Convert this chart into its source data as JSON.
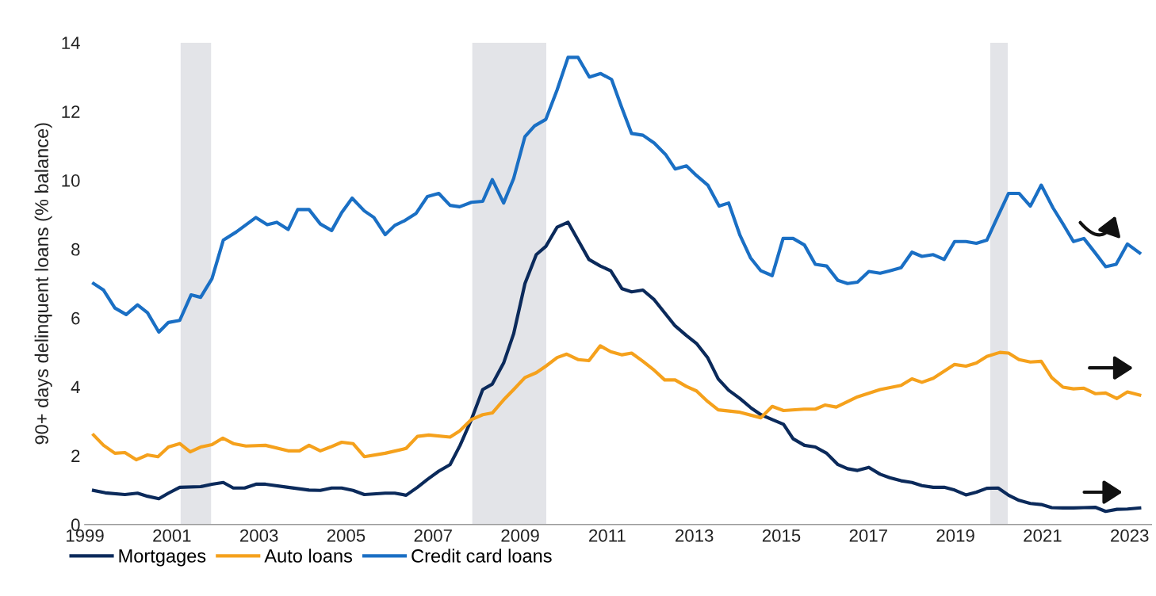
{
  "chart_data": {
    "type": "line",
    "ylabel": "90+ days delinquent loans (% balance)",
    "xlim": [
      1999,
      2023.5
    ],
    "ylim": [
      0,
      14
    ],
    "xticks": [
      1999,
      2001,
      2003,
      2005,
      2007,
      2009,
      2011,
      2013,
      2015,
      2017,
      2019,
      2021,
      2023
    ],
    "yticks": [
      0,
      2,
      4,
      6,
      8,
      10,
      12,
      14
    ],
    "grid": false,
    "legend": "bottom left",
    "marker": "none",
    "line_style": "solid",
    "bands": [
      {
        "axis": "x",
        "from": 2001.2,
        "to": 2001.9,
        "color": "#e3e4e8"
      },
      {
        "axis": "x",
        "from": 2007.9,
        "to": 2009.6,
        "color": "#e3e4e8"
      },
      {
        "axis": "x",
        "from": 2019.8,
        "to": 2020.2,
        "color": "#e3e4e8"
      }
    ],
    "series": [
      {
        "name": "Mortgages",
        "color": "#0b2a5b",
        "x": [
          1999.2,
          1999.47,
          1999.92,
          2000.21,
          2000.44,
          2000.7,
          2000.92,
          2001.18,
          2001.66,
          2001.92,
          2002.18,
          2002.41,
          2002.67,
          2002.93,
          2003.15,
          2003.67,
          2004.15,
          2004.41,
          2004.67,
          2004.9,
          2005.16,
          2005.42,
          2005.9,
          2006.12,
          2006.38,
          2006.64,
          2006.87,
          2007.13,
          2007.39,
          2007.62,
          2007.88,
          2008.14,
          2008.36,
          2008.62,
          2008.85,
          2009.11,
          2009.37,
          2009.59,
          2009.85,
          2010.1,
          2010.33,
          2010.58,
          2010.84,
          2011.08,
          2011.34,
          2011.56,
          2011.82,
          2012.08,
          2012.32,
          2012.56,
          2012.82,
          2013.05,
          2013.31,
          2013.55,
          2013.79,
          2014.05,
          2014.31,
          2014.53,
          2014.79,
          2015.05,
          2015.27,
          2015.53,
          2015.78,
          2016.04,
          2016.3,
          2016.52,
          2016.75,
          2017.01,
          2017.27,
          2017.49,
          2017.75,
          2018.0,
          2018.23,
          2018.49,
          2018.74,
          2018.98,
          2019.24,
          2019.48,
          2019.72,
          2019.98,
          2020.22,
          2020.46,
          2020.72,
          2020.97,
          2021.21,
          2021.47,
          2021.71,
          2021.95,
          2022.21,
          2022.45,
          2022.71,
          2022.95,
          2023.23
        ],
        "values": [
          0.99,
          0.92,
          0.87,
          0.91,
          0.82,
          0.75,
          0.91,
          1.08,
          1.1,
          1.17,
          1.22,
          1.06,
          1.06,
          1.17,
          1.17,
          1.08,
          1.0,
          0.99,
          1.06,
          1.06,
          0.99,
          0.87,
          0.91,
          0.91,
          0.85,
          1.08,
          1.31,
          1.55,
          1.74,
          2.3,
          3.05,
          3.92,
          4.08,
          4.69,
          5.54,
          7.0,
          7.84,
          8.08,
          8.64,
          8.78,
          8.26,
          7.7,
          7.51,
          7.37,
          6.85,
          6.76,
          6.81,
          6.53,
          6.15,
          5.77,
          5.49,
          5.26,
          4.84,
          4.23,
          3.9,
          3.66,
          3.38,
          3.19,
          3.05,
          2.91,
          2.49,
          2.3,
          2.25,
          2.07,
          1.74,
          1.62,
          1.57,
          1.66,
          1.46,
          1.36,
          1.27,
          1.22,
          1.13,
          1.08,
          1.08,
          1.0,
          0.86,
          0.94,
          1.05,
          1.06,
          0.85,
          0.7,
          0.61,
          0.58,
          0.49,
          0.48,
          0.48,
          0.49,
          0.5,
          0.38,
          0.44,
          0.45,
          0.48
        ]
      },
      {
        "name": "Auto loans",
        "color": "#f5a11c",
        "x": [
          1999.2,
          1999.43,
          1999.69,
          1999.92,
          2000.18,
          2000.44,
          2000.68,
          2000.92,
          2001.18,
          2001.42,
          2001.66,
          2001.92,
          2002.17,
          2002.41,
          2002.7,
          2003.15,
          2003.67,
          2003.93,
          2004.15,
          2004.41,
          2004.64,
          2004.9,
          2005.16,
          2005.42,
          2005.9,
          2006.38,
          2006.64,
          2006.9,
          2007.39,
          2007.61,
          2007.88,
          2008.14,
          2008.36,
          2008.62,
          2008.85,
          2009.11,
          2009.37,
          2009.59,
          2009.85,
          2010.07,
          2010.33,
          2010.58,
          2010.84,
          2011.08,
          2011.34,
          2011.56,
          2011.82,
          2012.08,
          2012.32,
          2012.56,
          2012.82,
          2013.05,
          2013.31,
          2013.55,
          2014.05,
          2014.53,
          2014.79,
          2015.05,
          2015.52,
          2015.78,
          2016.0,
          2016.26,
          2016.75,
          2017.27,
          2017.75,
          2018.0,
          2018.23,
          2018.49,
          2018.98,
          2019.24,
          2019.48,
          2019.72,
          2020.02,
          2020.22,
          2020.46,
          2020.72,
          2020.97,
          2021.21,
          2021.47,
          2021.71,
          2021.95,
          2022.21,
          2022.45,
          2022.71,
          2022.95,
          2023.23
        ],
        "values": [
          2.6,
          2.3,
          2.07,
          2.09,
          1.88,
          2.02,
          1.97,
          2.25,
          2.35,
          2.11,
          2.25,
          2.32,
          2.51,
          2.35,
          2.28,
          2.3,
          2.14,
          2.14,
          2.3,
          2.14,
          2.25,
          2.39,
          2.35,
          1.97,
          2.07,
          2.21,
          2.56,
          2.6,
          2.54,
          2.72,
          3.05,
          3.19,
          3.24,
          3.62,
          3.92,
          4.27,
          4.41,
          4.6,
          4.85,
          4.95,
          4.79,
          4.76,
          5.19,
          5.02,
          4.93,
          4.98,
          4.74,
          4.48,
          4.2,
          4.2,
          4.01,
          3.88,
          3.57,
          3.33,
          3.26,
          3.1,
          3.43,
          3.31,
          3.35,
          3.35,
          3.47,
          3.41,
          3.71,
          3.92,
          4.04,
          4.23,
          4.13,
          4.25,
          4.65,
          4.6,
          4.69,
          4.88,
          5.0,
          4.98,
          4.79,
          4.72,
          4.74,
          4.27,
          3.99,
          3.94,
          3.96,
          3.8,
          3.82,
          3.66,
          3.85,
          3.76
        ]
      },
      {
        "name": "Credit card loans",
        "color": "#1a6fc4",
        "x": [
          1999.2,
          1999.43,
          1999.69,
          1999.95,
          2000.21,
          2000.44,
          2000.7,
          2000.92,
          2001.18,
          2001.44,
          2001.66,
          2001.92,
          2002.18,
          2002.48,
          2002.93,
          2003.19,
          2003.41,
          2003.67,
          2003.89,
          2004.15,
          2004.41,
          2004.67,
          2004.9,
          2005.14,
          2005.42,
          2005.64,
          2005.9,
          2006.12,
          2006.35,
          2006.61,
          2006.87,
          2007.13,
          2007.39,
          2007.61,
          2007.88,
          2008.14,
          2008.36,
          2008.62,
          2008.85,
          2009.11,
          2009.33,
          2009.59,
          2009.85,
          2010.1,
          2010.33,
          2010.59,
          2010.85,
          2011.1,
          2011.32,
          2011.56,
          2011.82,
          2012.08,
          2012.34,
          2012.56,
          2012.82,
          2013.05,
          2013.31,
          2013.57,
          2013.79,
          2014.05,
          2014.29,
          2014.53,
          2014.79,
          2015.04,
          2015.27,
          2015.53,
          2015.78,
          2016.04,
          2016.3,
          2016.52,
          2016.75,
          2017.01,
          2017.27,
          2017.49,
          2017.75,
          2018.0,
          2018.23,
          2018.49,
          2018.74,
          2018.98,
          2019.24,
          2019.48,
          2019.72,
          2019.98,
          2020.22,
          2020.46,
          2020.72,
          2020.97,
          2021.24,
          2021.47,
          2021.71,
          2021.95,
          2022.21,
          2022.45,
          2022.69,
          2022.95,
          2023.23
        ],
        "values": [
          7.0,
          6.81,
          6.29,
          6.1,
          6.38,
          6.15,
          5.59,
          5.87,
          5.93,
          6.67,
          6.6,
          7.14,
          8.26,
          8.5,
          8.92,
          8.71,
          8.78,
          8.57,
          9.15,
          9.15,
          8.73,
          8.54,
          9.06,
          9.48,
          9.11,
          8.92,
          8.42,
          8.69,
          8.83,
          9.04,
          9.53,
          9.62,
          9.27,
          9.23,
          9.36,
          9.39,
          10.02,
          9.34,
          10.05,
          11.27,
          11.58,
          11.77,
          12.63,
          13.57,
          13.57,
          13.0,
          13.1,
          12.93,
          12.16,
          11.36,
          11.31,
          11.08,
          10.75,
          10.33,
          10.42,
          10.14,
          9.86,
          9.25,
          9.34,
          8.4,
          7.75,
          7.37,
          7.23,
          8.31,
          8.31,
          8.12,
          7.56,
          7.51,
          7.09,
          7.0,
          7.04,
          7.35,
          7.3,
          7.37,
          7.46,
          7.91,
          7.79,
          7.84,
          7.7,
          8.22,
          8.22,
          8.17,
          8.26,
          8.97,
          9.62,
          9.62,
          9.25,
          9.86,
          9.2,
          8.73,
          8.22,
          8.31,
          7.89,
          7.49,
          7.56,
          8.15,
          7.89
        ]
      }
    ]
  }
}
